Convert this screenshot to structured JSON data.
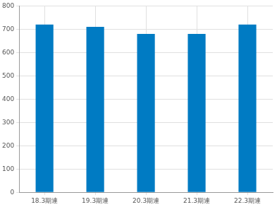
{
  "chart_data": {
    "type": "bar",
    "categories": [
      "18.3期連",
      "19.3期連",
      "20.3期連",
      "21.3期連",
      "22.3期連"
    ],
    "values": [
      720,
      710,
      680,
      680,
      720
    ],
    "color": "#007bc3",
    "ylim": [
      0,
      800
    ],
    "yticks": [
      0,
      100,
      200,
      300,
      400,
      500,
      600,
      700,
      800
    ],
    "grid": true
  }
}
